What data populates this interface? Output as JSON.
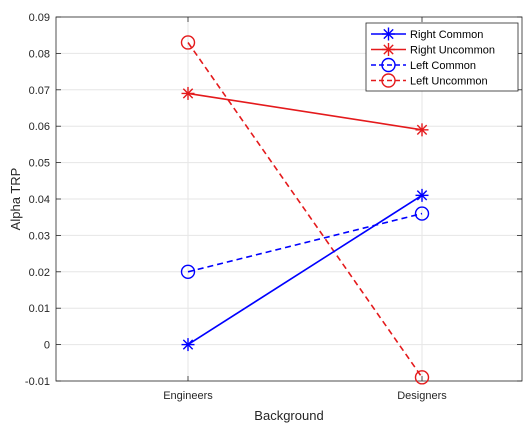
{
  "chart_data": {
    "type": "line",
    "title": "",
    "xlabel": "Background",
    "ylabel": "Alpha TRP",
    "categories": [
      "Engineers",
      "Designers"
    ],
    "ylim": [
      -0.01,
      0.09
    ],
    "yticks": [
      "-0.01",
      "0",
      "0.01",
      "0.02",
      "0.03",
      "0.04",
      "0.05",
      "0.06",
      "0.07",
      "0.08",
      "0.09"
    ],
    "grid": true,
    "legend_position": "top-right",
    "series": [
      {
        "name": "Right Common",
        "values": [
          0.0,
          0.041
        ],
        "color": "#0000ff",
        "line_style": "solid",
        "marker": "asterisk"
      },
      {
        "name": "Right Uncommon",
        "values": [
          0.069,
          0.059
        ],
        "color": "#e41a1c",
        "line_style": "solid",
        "marker": "asterisk"
      },
      {
        "name": "Left Common",
        "values": [
          0.02,
          0.036
        ],
        "color": "#0000ff",
        "line_style": "dashed",
        "marker": "circle"
      },
      {
        "name": "Left Uncommon",
        "values": [
          0.083,
          -0.009
        ],
        "color": "#e41a1c",
        "line_style": "dashed",
        "marker": "circle"
      }
    ]
  }
}
